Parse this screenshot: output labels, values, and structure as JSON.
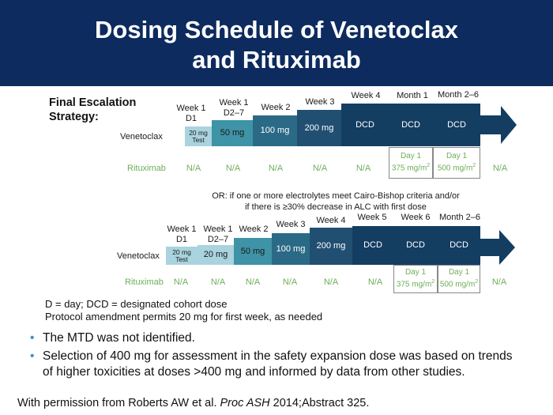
{
  "header": {
    "title_line1": "Dosing Schedule of Venetoclax",
    "title_line2": "and Rituximab"
  },
  "final_strategy": {
    "label_line1": "Final Escalation",
    "label_line2": "Strategy:",
    "steps": [
      {
        "l1": "Week 1",
        "l2": "D1"
      },
      {
        "l1": "Week 1",
        "l2": "D2–7"
      },
      {
        "l1": "Week 2",
        "l2": ""
      },
      {
        "l1": "Week 3",
        "l2": ""
      },
      {
        "l1": "Week 4",
        "l2": ""
      },
      {
        "l1": "Month 1",
        "l2": ""
      },
      {
        "l1": "Month 2–6",
        "l2": ""
      }
    ],
    "venetoclax_label": "Venetoclax",
    "doses": [
      {
        "l1": "20 mg",
        "l2": "Test"
      },
      {
        "l1": "50 mg",
        "l2": ""
      },
      {
        "l1": "100 mg",
        "l2": ""
      },
      {
        "l1": "200 mg",
        "l2": ""
      },
      {
        "l1": "DCD",
        "l2": ""
      },
      {
        "l1": "DCD",
        "l2": ""
      },
      {
        "l1": "DCD",
        "l2": ""
      }
    ],
    "rituximab_label": "Rituximab",
    "rituximab_na": [
      "N/A",
      "N/A",
      "N/A",
      "N/A",
      "N/A",
      "N/A"
    ],
    "rituximab_boxes": [
      {
        "day": "Day 1",
        "dose": "375 mg/m",
        "sup": "2"
      },
      {
        "day": "Day 1",
        "dose": "500 mg/m",
        "sup": "2"
      }
    ]
  },
  "alternative": {
    "line1": "OR: if one or more electrolytes meet Cairo-Bishop criteria and/or",
    "line2": "if there is ≥30% decrease in ALC with first dose"
  },
  "alt_strategy": {
    "steps": [
      {
        "l1": "Week 1",
        "l2": "D1"
      },
      {
        "l1": "Week 1",
        "l2": "D2–7"
      },
      {
        "l1": "Week 2",
        "l2": ""
      },
      {
        "l1": "Week 3",
        "l2": ""
      },
      {
        "l1": "Week 4",
        "l2": ""
      },
      {
        "l1": "Week 5",
        "l2": ""
      },
      {
        "l1": "Week 6",
        "l2": ""
      },
      {
        "l1": "Month 2–6",
        "l2": ""
      }
    ],
    "venetoclax_label": "Venetoclax",
    "doses": [
      {
        "l1": "20 mg",
        "l2": "Test"
      },
      {
        "l1": "20 mg",
        "l2": ""
      },
      {
        "l1": "50 mg",
        "l2": ""
      },
      {
        "l1": "100 mg",
        "l2": ""
      },
      {
        "l1": "200 mg",
        "l2": ""
      },
      {
        "l1": "DCD",
        "l2": ""
      },
      {
        "l1": "DCD",
        "l2": ""
      },
      {
        "l1": "DCD",
        "l2": ""
      }
    ],
    "rituximab_label": "Rituximab",
    "rituximab_na": [
      "N/A",
      "N/A",
      "N/A",
      "N/A",
      "N/A",
      "N/A",
      "N/A"
    ],
    "rituximab_boxes": [
      {
        "day": "Day 1",
        "dose": "375 mg/m",
        "sup": "2"
      },
      {
        "day": "Day 1",
        "dose": "500 mg/m",
        "sup": "2"
      }
    ]
  },
  "footnotes": {
    "line1": "D = day; DCD = designated cohort dose",
    "line2": "Protocol amendment permits 20 mg for first week, as needed"
  },
  "bullets": [
    {
      "text": "The MTD was not identified."
    },
    {
      "text": "Selection of 400 mg for assessment in the safety expansion dose was based on trends of higher toxicities at doses >400 mg and informed by data from other studies."
    }
  ],
  "bullet_marker": "•",
  "citation": {
    "prefix": "With permission from Roberts AW et al. ",
    "journal": "Proc ASH",
    "suffix": " 2014;Abstract 325."
  },
  "colors": {
    "header_bg": "#0d2b5e",
    "dose_light": "#a9d3de",
    "dose_teal": "#3f93a6",
    "dose_mid": "#2b6a86",
    "dose_dark": "#214f72",
    "dose_navy": "#143d62",
    "rituximab_text": "#6fae5a",
    "bullet_dot": "#3a8fc7"
  }
}
